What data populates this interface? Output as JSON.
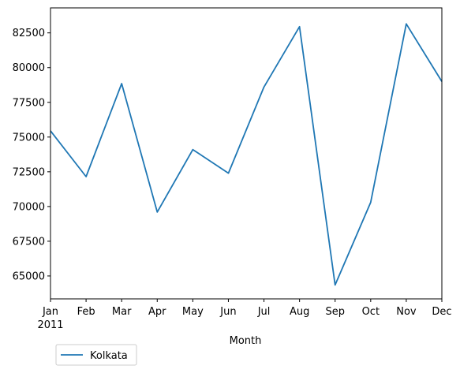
{
  "chart_data": {
    "type": "line",
    "title": "",
    "xlabel": "Month",
    "ylabel": "",
    "categories": [
      "Jan",
      "Feb",
      "Mar",
      "Apr",
      "May",
      "Jun",
      "Jul",
      "Aug",
      "Sep",
      "Oct",
      "Nov",
      "Dec"
    ],
    "year_label": "2011",
    "yticks": [
      "65000",
      "67500",
      "70000",
      "72500",
      "75000",
      "77500",
      "80000",
      "82500"
    ],
    "ylim": [
      63350,
      84300
    ],
    "grid": false,
    "legend_position": "below-left",
    "series": [
      {
        "name": "Kolkata",
        "color": "#1f77b4",
        "values": [
          75450,
          72150,
          78850,
          69600,
          74100,
          72400,
          78600,
          82950,
          64350,
          70300,
          83150,
          79000
        ]
      }
    ]
  }
}
